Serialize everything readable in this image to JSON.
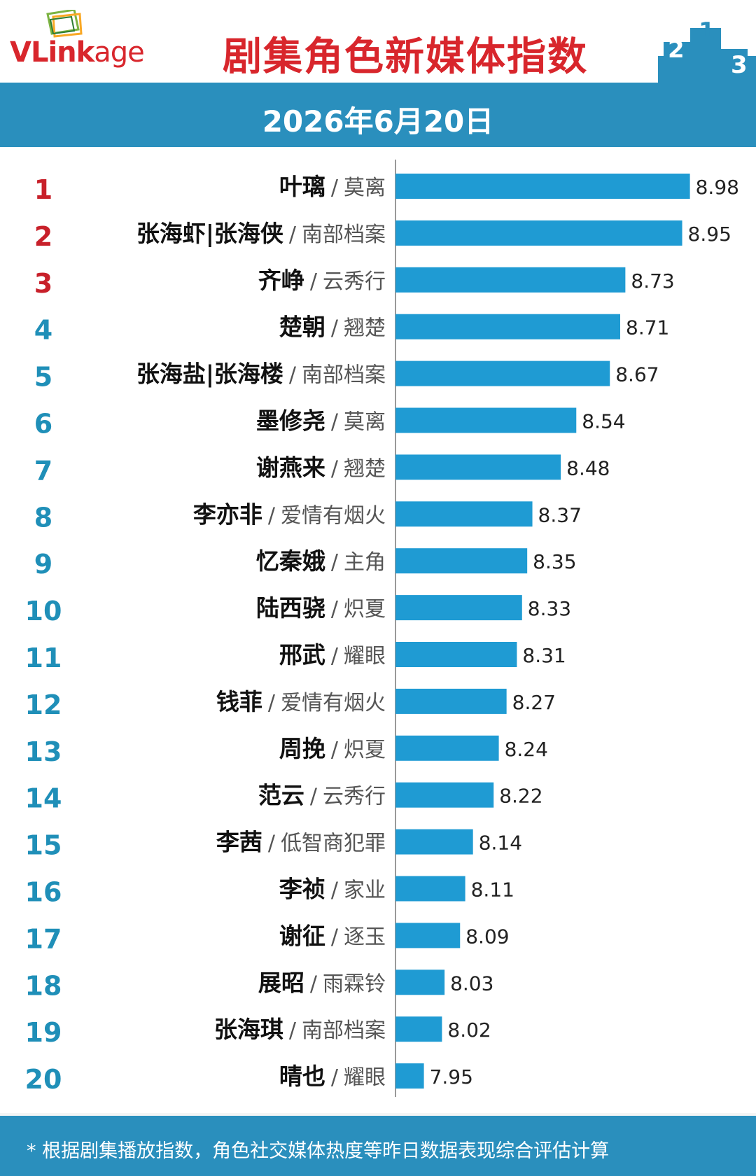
{
  "header": {
    "logo_text_bold": "VLink",
    "logo_text_regular": "age",
    "title": "剧集角色新媒体指数",
    "podium_digits": [
      "2",
      "1",
      "3"
    ]
  },
  "date_text": "2026年6月20日",
  "colors": {
    "brand_red": "#d8262c",
    "accent_blue": "#2a8fbd",
    "bar_blue": "#1f9bd3",
    "top_rank_red": "#c8202a",
    "rank_blue": "#1f8fb8"
  },
  "chart_data": {
    "type": "bar",
    "orientation": "horizontal",
    "categories": [
      "叶璃",
      "张海虾|张海侠",
      "齐峥",
      "楚朝",
      "张海盐|张海楼",
      "墨修尧",
      "谢燕来",
      "李亦非",
      "忆秦娥",
      "陆西骁",
      "邢武",
      "钱菲",
      "周挽",
      "范云",
      "李茜",
      "李祯",
      "谢征",
      "展昭",
      "张海琪",
      "晴也"
    ],
    "dramas": [
      "莫离",
      "南部档案",
      "云秀行",
      "翘楚",
      "南部档案",
      "莫离",
      "翘楚",
      "爱情有烟火",
      "主角",
      "炽夏",
      "耀眼",
      "爱情有烟火",
      "炽夏",
      "云秀行",
      "低智商犯罪",
      "家业",
      "逐玉",
      "雨霖铃",
      "南部档案",
      "耀眼"
    ],
    "ranks": [
      "1",
      "2",
      "3",
      "4",
      "5",
      "6",
      "7",
      "8",
      "9",
      "10",
      "11",
      "12",
      "13",
      "14",
      "15",
      "16",
      "17",
      "18",
      "19",
      "20"
    ],
    "values": [
      8.98,
      8.95,
      8.73,
      8.71,
      8.67,
      8.54,
      8.48,
      8.37,
      8.35,
      8.33,
      8.31,
      8.27,
      8.24,
      8.22,
      8.14,
      8.11,
      8.09,
      8.03,
      8.02,
      7.95
    ],
    "value_labels": [
      "8.98",
      "8.95",
      "8.73",
      "8.71",
      "8.67",
      "8.54",
      "8.48",
      "8.37",
      "8.35",
      "8.33",
      "8.31",
      "8.27",
      "8.24",
      "8.22",
      "8.14",
      "8.11",
      "8.09",
      "8.03",
      "8.02",
      "7.95"
    ],
    "separator": "/",
    "xlim": [
      7.84,
      9.0
    ],
    "grid": false,
    "legend": "none"
  },
  "footnote": "* 根据剧集播放指数，角色社交媒体热度等昨日数据表现综合评估计算"
}
